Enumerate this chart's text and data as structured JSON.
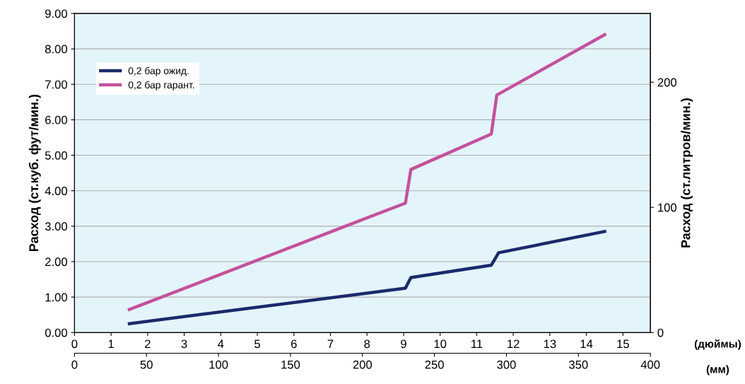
{
  "chart_data": {
    "type": "line",
    "ylabel": "Расход (ст.куб. фут/мин.)",
    "y2label": "Расход (ст.литров/мин.)",
    "xlabel": "(дюймы)",
    "x2label": "(мм)",
    "xlim": [
      0,
      15.75
    ],
    "xticks": [
      0,
      1,
      2,
      3,
      4,
      5,
      6,
      7,
      8,
      9,
      10,
      11,
      12,
      13,
      14,
      15
    ],
    "x2lim": [
      0,
      400
    ],
    "x2ticks": [
      0,
      50,
      100,
      150,
      200,
      250,
      300,
      350,
      400
    ],
    "ylim": [
      0,
      9
    ],
    "yticks": [
      {
        "value": 0,
        "label": "0.00"
      },
      {
        "value": 1,
        "label": "1.00"
      },
      {
        "value": 2,
        "label": "2.00"
      },
      {
        "value": 3,
        "label": "3.00"
      },
      {
        "value": 4,
        "label": "4.00"
      },
      {
        "value": 5,
        "label": "5.00"
      },
      {
        "value": 6,
        "label": "6.00"
      },
      {
        "value": 7,
        "label": "7.00"
      },
      {
        "value": 8,
        "label": "8.00"
      },
      {
        "value": 9,
        "label": "9.00"
      }
    ],
    "y2lim": [
      0,
      254.9
    ],
    "y2ticks": [
      0,
      100,
      200
    ],
    "grid": "y",
    "legend": "top left",
    "marker": "none",
    "line_style": "solid",
    "series": [
      {
        "name": "0,2 бар ожид.",
        "color": "#1b2a6b",
        "x": [
          1.5,
          9.05,
          9.2,
          11.4,
          11.6,
          14.5
        ],
        "values": [
          0.25,
          1.25,
          1.55,
          1.9,
          2.25,
          2.85
        ]
      },
      {
        "name": "0,2 бар гарант.",
        "color": "#c4519c",
        "x": [
          1.5,
          9.05,
          9.2,
          11.4,
          11.55,
          14.5
        ],
        "values": [
          0.65,
          3.65,
          4.6,
          5.6,
          6.7,
          8.4
        ]
      }
    ]
  }
}
